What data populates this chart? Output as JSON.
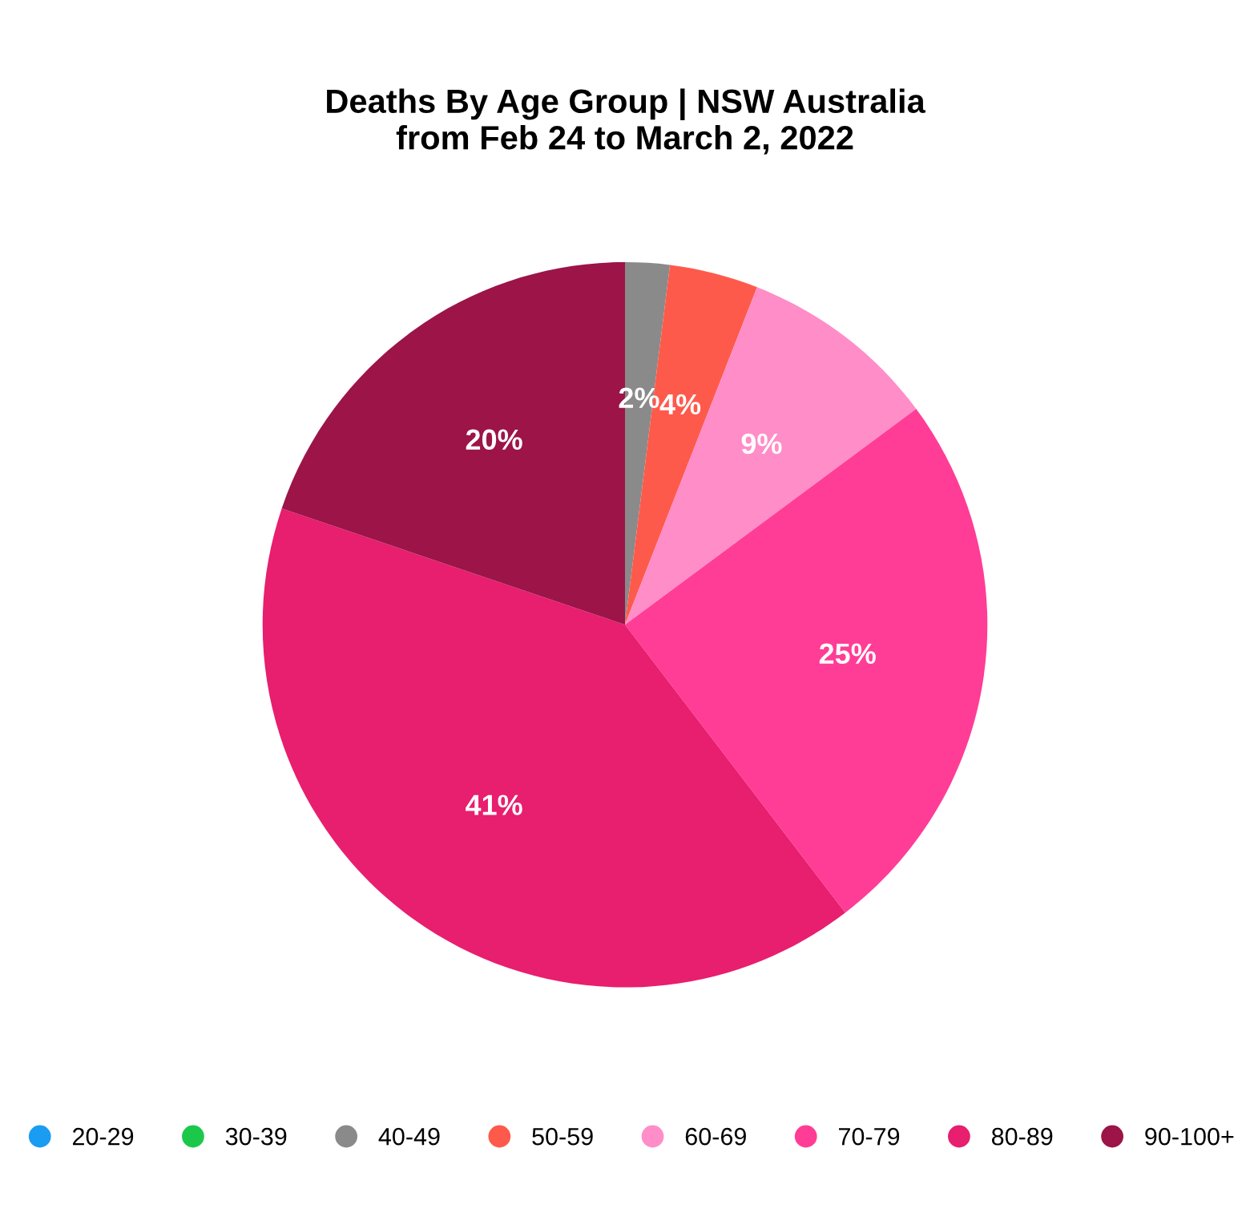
{
  "chart_data": {
    "type": "pie",
    "title": "Deaths By Age Group | NSW Australia\nfrom Feb 24 to March 2, 2022",
    "categories": [
      "20-29",
      "30-39",
      "40-49",
      "50-59",
      "60-69",
      "70-79",
      "80-89",
      "90-100+"
    ],
    "values": [
      0,
      0,
      2,
      4,
      9,
      25,
      41,
      20
    ],
    "colors": [
      "#1a9cf2",
      "#1cc84a",
      "#8a8a8a",
      "#fe5a4c",
      "#ff8dc8",
      "#ff3d96",
      "#e81e6e",
      "#9c1448"
    ],
    "value_labels": [
      null,
      null,
      "2%",
      "4%",
      "9%",
      "25%",
      "41%",
      "20%"
    ],
    "legend": "bottom"
  }
}
